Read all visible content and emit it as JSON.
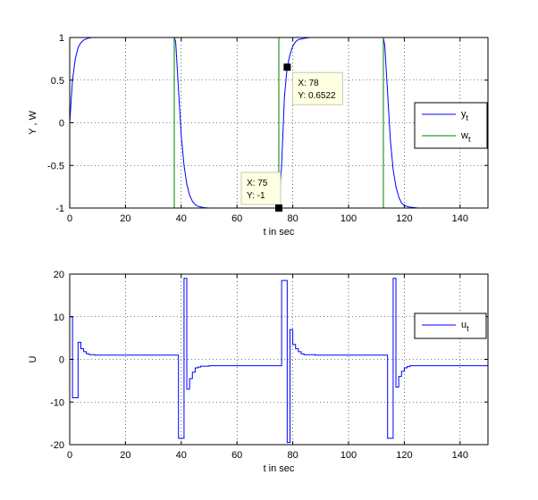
{
  "chart_data": [
    {
      "type": "line",
      "xlabel": "t in sec",
      "ylabel": "Y , W",
      "xlim": [
        0,
        150
      ],
      "ylim": [
        -1,
        1
      ],
      "x_ticks": [
        0,
        20,
        40,
        60,
        80,
        100,
        120,
        140
      ],
      "y_ticks": [
        -1,
        -0.5,
        0,
        0.5,
        1
      ],
      "x_tick_labels": [
        "0",
        "20",
        "40",
        "60",
        "80",
        "100",
        "120",
        "140"
      ],
      "y_tick_labels": [
        "-1",
        "-0.5",
        "0",
        "0.5",
        "1"
      ],
      "grid": true,
      "legend_position": "right",
      "series": [
        {
          "name": "y_t",
          "label_main": "y",
          "label_sub": "t",
          "color": "#0000ff",
          "x": [
            0,
            1,
            2,
            3,
            4,
            5,
            6,
            7,
            8,
            10,
            20,
            30,
            37.5,
            38,
            39,
            40,
            41,
            42,
            43,
            44,
            45,
            46,
            48,
            50,
            55,
            60,
            70,
            75,
            76,
            77,
            78,
            79,
            80,
            81,
            82,
            84,
            86,
            90,
            100,
            110,
            112.5,
            113,
            114,
            115,
            116,
            117,
            118,
            119,
            120,
            122,
            125,
            130,
            140,
            150
          ],
          "y": [
            0,
            0.5,
            0.75,
            0.88,
            0.94,
            0.97,
            0.985,
            0.995,
            1,
            1,
            1,
            1,
            1,
            0.95,
            0.4,
            -0.15,
            -0.5,
            -0.72,
            -0.85,
            -0.92,
            -0.96,
            -0.98,
            -0.995,
            -1,
            -1,
            -1,
            -1,
            -1,
            -0.5,
            0.3,
            0.6522,
            0.8,
            0.9,
            0.95,
            0.975,
            0.99,
            1,
            1,
            1,
            1,
            1,
            0.9,
            0.35,
            -0.2,
            -0.55,
            -0.75,
            -0.87,
            -0.94,
            -0.97,
            -0.99,
            -1,
            -1,
            -1,
            -1
          ]
        },
        {
          "name": "w_t",
          "label_main": "w",
          "label_sub": "t",
          "color": "#008000",
          "x": [
            0,
            37.5,
            37.5,
            75,
            75,
            112.5,
            112.5,
            150
          ],
          "y": [
            1,
            1,
            -1,
            -1,
            1,
            1,
            -1,
            -1
          ]
        }
      ],
      "datatips": [
        {
          "x": 78,
          "y": 0.6522,
          "line1": "X: 78",
          "line2": "Y: 0.6522",
          "placement": "below-right"
        },
        {
          "x": 75,
          "y": -1,
          "line1": "X: 75",
          "line2": "Y: -1",
          "placement": "above-left"
        }
      ]
    },
    {
      "type": "line",
      "xlabel": "t in sec",
      "ylabel": "U",
      "xlim": [
        0,
        150
      ],
      "ylim": [
        -20,
        20
      ],
      "x_ticks": [
        0,
        20,
        40,
        60,
        80,
        100,
        120,
        140
      ],
      "y_ticks": [
        -20,
        -10,
        0,
        10,
        20
      ],
      "x_tick_labels": [
        "0",
        "20",
        "40",
        "60",
        "80",
        "100",
        "120",
        "140"
      ],
      "y_tick_labels": [
        "-20",
        "-10",
        "0",
        "10",
        "20"
      ],
      "grid": true,
      "legend_position": "top-right",
      "series": [
        {
          "name": "u_t",
          "label_main": "u",
          "label_sub": "t",
          "color": "#0000ff",
          "step": true,
          "x": [
            0,
            1,
            3,
            4,
            5,
            6,
            7,
            9,
            37.5,
            39,
            41,
            42,
            43,
            44,
            45,
            46,
            47,
            50,
            75,
            76,
            78,
            79,
            80,
            81,
            82,
            83,
            84,
            88,
            112.5,
            114,
            116,
            117,
            118,
            119,
            120,
            121,
            122,
            125,
            150
          ],
          "y": [
            10,
            -9,
            4,
            2.5,
            1.8,
            1.3,
            1.1,
            1,
            1,
            -18.5,
            19,
            -7,
            -4.5,
            -3,
            -2,
            -1.8,
            -1.6,
            -1.5,
            -1.5,
            18.5,
            -19.5,
            7,
            3.5,
            2.5,
            1.8,
            1.3,
            1.1,
            1,
            1,
            -18.5,
            19,
            -6.5,
            -4,
            -2.8,
            -2,
            -1.7,
            -1.5,
            -1.5,
            -1.5
          ]
        }
      ]
    }
  ]
}
